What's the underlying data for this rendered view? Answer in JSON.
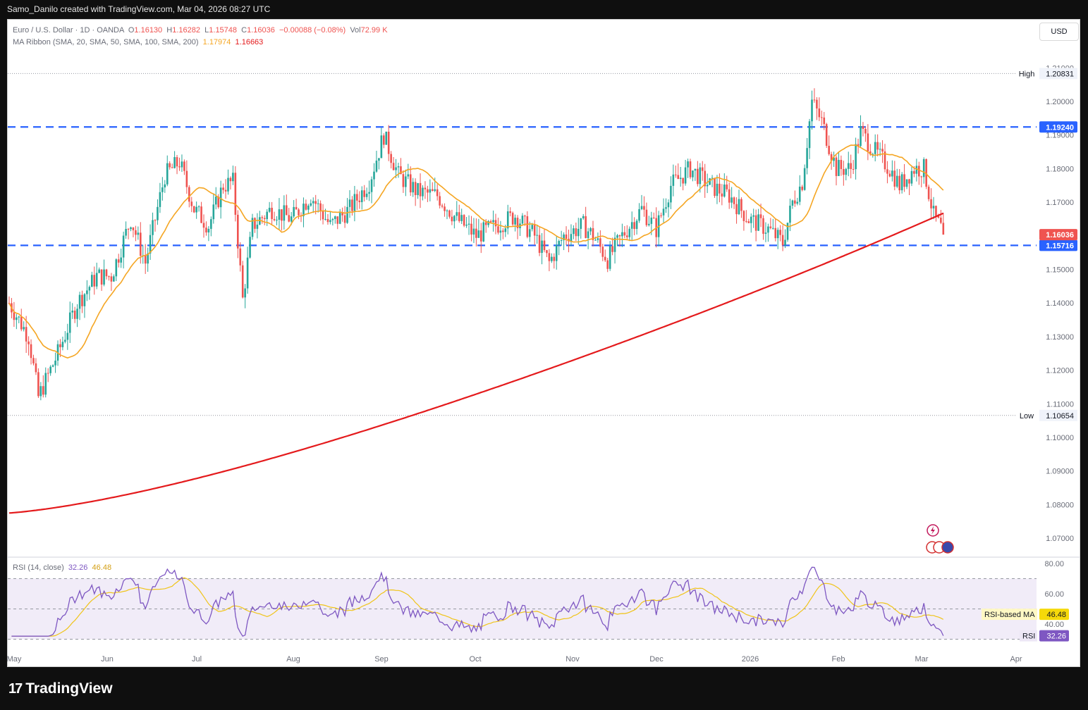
{
  "header": {
    "caption": "Samo_Danilo created with TradingView.com, Mar 04, 2026 08:27 UTC"
  },
  "legend": {
    "symbol": "Euro / U.S. Dollar · 1D · OANDA",
    "open_label": "O",
    "open": "1.16130",
    "high_label": "H",
    "high": "1.16282",
    "low_label": "L",
    "low": "1.15748",
    "close_label": "C",
    "close": "1.16036",
    "change": "−0.00088 (−0.08%)",
    "vol_label": "Vol",
    "vol": "72.99 K",
    "ma_label": "MA Ribbon (SMA, 20, SMA, 50, SMA, 100, SMA, 200)",
    "ma_20": "1.17974",
    "ma_200": "1.16663"
  },
  "currency_button": "USD",
  "rsi_legend": {
    "label": "RSI (14, close)",
    "rsi": "32.26",
    "ma": "46.48"
  },
  "brand": {
    "name": "TradingView",
    "mark": "17"
  },
  "chart_data": {
    "type": "candlestick",
    "symbol": "EUR/USD",
    "timeframe": "1D",
    "ylim": [
      1.063,
      1.214
    ],
    "y_ticks": [
      "1.21000",
      "1.20000",
      "1.19000",
      "1.18000",
      "1.17000",
      "1.16000",
      "1.15000",
      "1.14000",
      "1.13000",
      "1.12000",
      "1.11000",
      "1.10000",
      "1.09000",
      "1.08000",
      "1.07000"
    ],
    "x_ticks": [
      "May",
      "Jun",
      "Jul",
      "Aug",
      "Sep",
      "Oct",
      "Nov",
      "Dec",
      "2026",
      "Feb",
      "Mar",
      "Apr"
    ],
    "high_marker": {
      "label": "High",
      "value": "1.20831"
    },
    "low_marker": {
      "label": "Low",
      "value": "1.10654"
    },
    "horizontal_levels": [
      {
        "value": 1.1924,
        "label": "1.19240",
        "color": "#2962ff"
      },
      {
        "value": 1.15716,
        "label": "1.15716",
        "color": "#2962ff"
      }
    ],
    "last_price": {
      "value": 1.16036,
      "label": "1.16036",
      "color": "#ef5350"
    },
    "series": [
      {
        "name": "SMA 20",
        "color": "#f5a623"
      },
      {
        "name": "SMA 200",
        "color": "#e41a1c"
      }
    ],
    "colors": {
      "up": "#26a69a",
      "down": "#ef5350"
    },
    "rsi": {
      "ylim": [
        29,
        82
      ],
      "y_ticks": [
        "80.00",
        "60.00",
        "40.00"
      ],
      "band_upper": 70,
      "band_mid": 50,
      "band_lower": 30,
      "rsi_label": "RSI",
      "rsi_value": "32.26",
      "ma_label": "RSI-based MA",
      "ma_value": "46.48",
      "rsi_color": "#7e57c2",
      "ma_color": "#f0c419"
    }
  }
}
